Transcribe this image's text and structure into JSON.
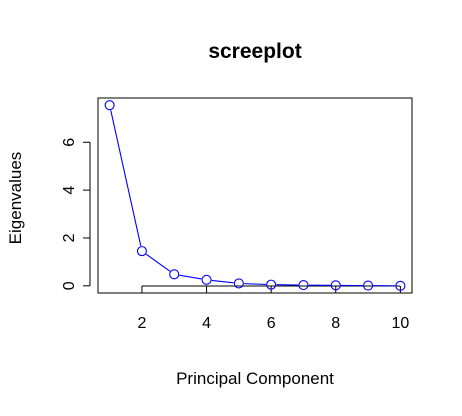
{
  "chart_data": {
    "type": "line",
    "title": "screeplot",
    "xlabel": "Principal Component",
    "ylabel": "Eigenvalues",
    "x": [
      1,
      2,
      3,
      4,
      5,
      6,
      7,
      8,
      9,
      10
    ],
    "series": [
      {
        "values": [
          7.55,
          1.45,
          0.48,
          0.25,
          0.1,
          0.05,
          0.03,
          0.02,
          0.01,
          0.0
        ],
        "color": "#0000ff",
        "marker": "open-circle"
      }
    ],
    "xlim": [
      0.64,
      10.36
    ],
    "ylim": [
      -0.3,
      7.85
    ],
    "x_ticks": [
      2,
      4,
      6,
      8,
      10
    ],
    "y_ticks": [
      0,
      2,
      4,
      6
    ],
    "grid": false,
    "legend": "none"
  }
}
